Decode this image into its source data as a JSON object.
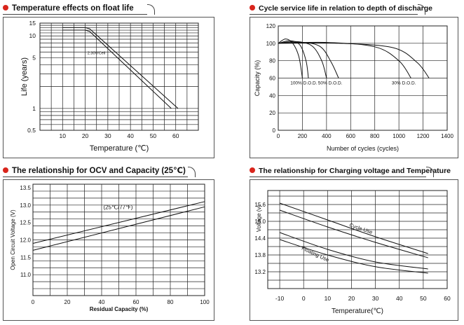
{
  "colors": {
    "accent": "#d9251c",
    "line": "#111111"
  },
  "panels": [
    {
      "title": "Temperature effects on float life"
    },
    {
      "title": "Cycle service life in relation to depth of discharge"
    },
    {
      "title": "The relationship  for OCV and Capacity (25℃)"
    },
    {
      "title": "The relationship for Charging voltage and Temperature"
    }
  ],
  "chart_data": [
    {
      "type": "line",
      "title": "Temperature effects on float life",
      "xlabel": "Temperature (℃)",
      "ylabel": "Life (years)",
      "yscale": "log",
      "xlim": [
        0,
        70
      ],
      "ylim": [
        0.5,
        15
      ],
      "xticks": [
        "10",
        "20",
        "30",
        "40",
        "50",
        "60"
      ],
      "yticks": [
        "15",
        "10",
        "5",
        "1",
        "0.5"
      ],
      "annotation": "2.30V/Cell",
      "series": [
        {
          "name": "upper",
          "x": [
            10,
            20,
            22,
            61
          ],
          "y": [
            13,
            13,
            12.5,
            1
          ]
        },
        {
          "name": "lower",
          "x": [
            10,
            20,
            22,
            58
          ],
          "y": [
            12,
            12,
            11.5,
            1
          ]
        }
      ]
    },
    {
      "type": "line",
      "title": "Cycle service life in relation to depth of discharge",
      "xlabel": "Number of cycles (cycles)",
      "ylabel": "Capacity (%)",
      "xlim": [
        0,
        1400
      ],
      "ylim": [
        0,
        120
      ],
      "xticks": [
        "0",
        "200",
        "400",
        "600",
        "800",
        "1000",
        "1200",
        "1400"
      ],
      "yticks": [
        "0",
        "20",
        "40",
        "60",
        "80",
        "100",
        "120"
      ],
      "labels": [
        "100% D.O.D.",
        "50% D.O.D.",
        "30% D.O.D."
      ],
      "series": [
        {
          "name": "100% D.O.D. a",
          "x": [
            0,
            60,
            120,
            170,
            200
          ],
          "y": [
            100,
            105,
            100,
            85,
            60
          ]
        },
        {
          "name": "100% D.O.D. b",
          "x": [
            0,
            100,
            180,
            230,
            250
          ],
          "y": [
            100,
            103,
            98,
            80,
            60
          ]
        },
        {
          "name": "50% D.O.D. a",
          "x": [
            0,
            150,
            280,
            360,
            400
          ],
          "y": [
            100,
            102,
            97,
            80,
            60
          ]
        },
        {
          "name": "50% D.O.D. b",
          "x": [
            0,
            200,
            350,
            440,
            500
          ],
          "y": [
            100,
            101,
            96,
            78,
            60
          ]
        },
        {
          "name": "30% D.O.D. a",
          "x": [
            0,
            400,
            800,
            1000,
            1100
          ],
          "y": [
            100,
            101,
            96,
            80,
            60
          ]
        },
        {
          "name": "30% D.O.D. b",
          "x": [
            0,
            500,
            950,
            1150,
            1250
          ],
          "y": [
            100,
            100,
            95,
            78,
            60
          ]
        }
      ]
    },
    {
      "type": "line",
      "title": "The relationship for OCV and Capacity (25℃)",
      "xlabel": "Residual Capacity (%)",
      "ylabel": "Open Circuit Voltage (V)",
      "xlim": [
        0,
        100
      ],
      "ylim": [
        10.4,
        13.6
      ],
      "xticks": [
        "0",
        "20",
        "40",
        "60",
        "80",
        "100"
      ],
      "yticks": [
        "13.5",
        "13.0",
        "12.5",
        "12.0",
        "11.5",
        "11.0"
      ],
      "annotation": "(25℃/77℉)",
      "series": [
        {
          "name": "upper",
          "x": [
            0,
            100
          ],
          "y": [
            11.9,
            13.1
          ]
        },
        {
          "name": "lower",
          "x": [
            0,
            100
          ],
          "y": [
            11.7,
            12.95
          ]
        }
      ]
    },
    {
      "type": "line",
      "title": "The relationship for Charging voltage and Temperature",
      "xlabel": "Temperature(℃)",
      "ylabel": "Voltage (v)",
      "xlim": [
        -15,
        60
      ],
      "ylim": [
        12.6,
        16.1
      ],
      "xticks": [
        "-10",
        "0",
        "10",
        "20",
        "30",
        "40",
        "50",
        "60"
      ],
      "yticks": [
        "15.6",
        "15.0",
        "14.4",
        "13.8",
        "13.2"
      ],
      "labels": [
        "Cycle Use",
        "Floating Use"
      ],
      "series": [
        {
          "name": "Cycle Use upper",
          "x": [
            -10,
            10,
            30,
            52
          ],
          "y": [
            15.65,
            15.05,
            14.45,
            13.85
          ]
        },
        {
          "name": "Cycle Use lower",
          "x": [
            -10,
            10,
            30,
            52
          ],
          "y": [
            15.4,
            14.8,
            14.25,
            13.7
          ]
        },
        {
          "name": "Floating Use upper",
          "x": [
            -10,
            10,
            30,
            52
          ],
          "y": [
            14.6,
            14.0,
            13.55,
            13.3
          ]
        },
        {
          "name": "Floating Use lower",
          "x": [
            -10,
            10,
            30,
            52
          ],
          "y": [
            14.35,
            13.8,
            13.38,
            13.15
          ]
        }
      ]
    }
  ]
}
